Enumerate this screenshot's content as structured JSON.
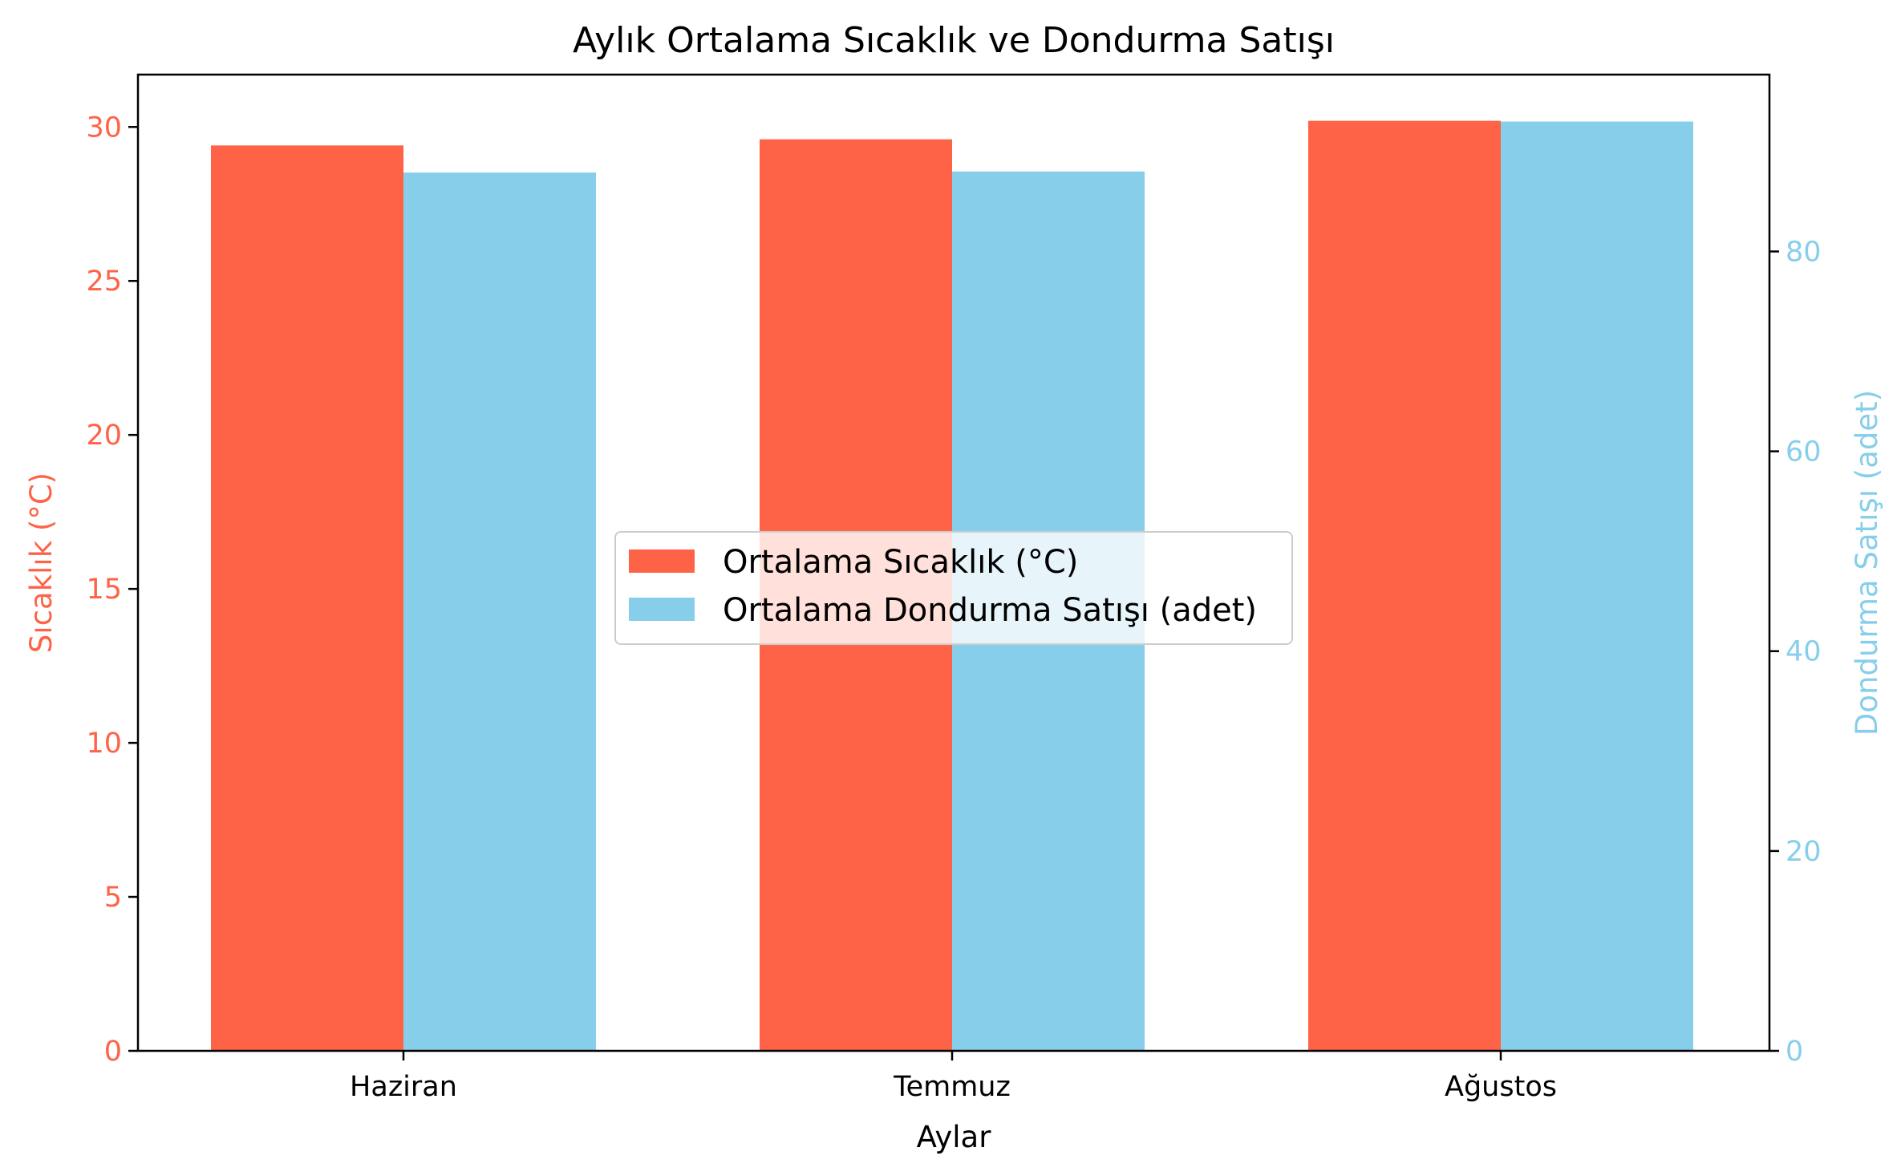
{
  "chart_data": {
    "type": "bar",
    "title": "Aylık Ortalama Sıcaklık ve Dondurma Satışı",
    "xlabel": "Aylar",
    "categories": [
      "Haziran",
      "Temmuz",
      "Ağustos"
    ],
    "y_left": {
      "label": "Sıcaklık (°C)",
      "color": "#ff6347",
      "ylim": [
        0,
        31.7
      ],
      "ticks": [
        0,
        5,
        10,
        15,
        20,
        25,
        30
      ]
    },
    "y_right": {
      "label": "Dondurma Satışı (adet)",
      "color": "#87ceeb",
      "ylim": [
        0,
        97.7
      ],
      "ticks": [
        0,
        20,
        40,
        60,
        80
      ]
    },
    "series": [
      {
        "name": "Ortalama Sıcaklık (°C)",
        "axis": "left",
        "color": "#ff6347",
        "values": [
          29.4,
          29.6,
          30.2
        ]
      },
      {
        "name": "Ortalama Dondurma Satışı (adet)",
        "axis": "right",
        "color": "#87ceeb",
        "values": [
          87.9,
          88.0,
          93.0
        ]
      }
    ],
    "legend_position": "center",
    "grid": false
  }
}
